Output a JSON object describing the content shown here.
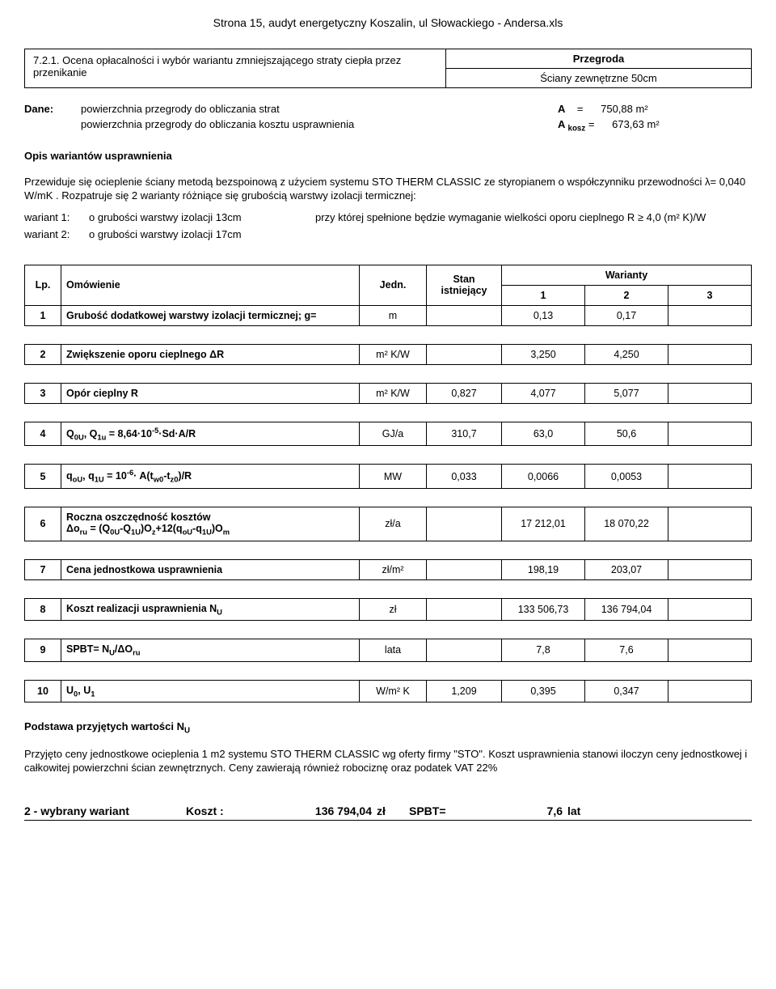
{
  "header": "Strona 15, audyt energetyczny Koszalin, ul Słowackiego - Andersa.xls",
  "section": {
    "number_title": "7.2.1. Ocena opłacalności i wybór wariantu zmniejszającego straty ciepła przez przenikanie",
    "right_top": "Przegroda",
    "right_bottom": "Ściany zewnętrzne 50cm"
  },
  "dane": {
    "label": "Dane:",
    "row1_desc": "powierzchnia przegrody do obliczania strat",
    "row1_sym": "A",
    "row1_eq": "=",
    "row1_val": "750,88",
    "row1_unit": "m²",
    "row2_desc": "powierzchnia przegrody do obliczania kosztu usprawnienia",
    "row2_sym": "A",
    "row2_sub": "kosz",
    "row2_eq": "=",
    "row2_val": "673,63",
    "row2_unit": "m²"
  },
  "opis": {
    "title": "Opis wariantów usprawnienia",
    "para": "Przewiduje się ocieplenie ściany metodą bezspoinową z użyciem systemu STO THERM CLASSIC ze styropianem o współczynniku przewodności λ=            0,040 W/mK . Rozpatruje się 2 warianty różniące się grubością warstwy izolacji termicznej:",
    "w1_lbl": "wariant 1:",
    "w1_desc": "o grubości warstwy izolacji 13cm",
    "w1_note": "przy której spełnione będzie wymaganie wielkości oporu cieplnego R ≥ 4,0 (m² K)/W",
    "w2_lbl": "wariant 2:",
    "w2_desc": "o grubości warstwy izolacji 17cm"
  },
  "table": {
    "head": {
      "lp": "Lp.",
      "om": "Omówienie",
      "jedn": "Jedn.",
      "stan": "Stan istniejący",
      "war": "Warianty",
      "w1": "1",
      "w2": "2",
      "w3": "3"
    },
    "rows": [
      {
        "lp": "1",
        "om": "Grubość dodatkowej warstwy izolacji termicznej;      g=",
        "jedn": "m",
        "stan": "",
        "v1": "0,13",
        "v2": "0,17",
        "v3": ""
      },
      {
        "lp": "2",
        "om": "Zwiększenie oporu cieplnego ΔR",
        "jedn": "m² K/W",
        "stan": "",
        "v1": "3,250",
        "v2": "4,250",
        "v3": ""
      },
      {
        "lp": "3",
        "om": "Opór cieplny R",
        "jedn": "m² K/W",
        "stan": "0,827",
        "v1": "4,077",
        "v2": "5,077",
        "v3": ""
      },
      {
        "lp": "4",
        "om_html": "Q<sub>0U</sub>, Q<sub>1u</sub> = 8,64·10<sup>-5</sup>·Sd·A/R",
        "jedn": "GJ/a",
        "stan": "310,7",
        "v1": "63,0",
        "v2": "50,6",
        "v3": ""
      },
      {
        "lp": "5",
        "om_html": "q<sub>oU</sub>, q<sub>1U</sub> = 10<sup>-6</sup>· A(t<sub>w0</sub>-t<sub>z0</sub>)/R",
        "jedn": "MW",
        "stan": "0,033",
        "v1": "0,0066",
        "v2": "0,0053",
        "v3": ""
      },
      {
        "lp": "6",
        "om_html": "<b>Roczna oszczędność kosztów</b><br>Δo<sub>ru</sub> = (Q<sub>0U</sub>-Q<sub>1U</sub>)O<sub>z</sub>+12(q<sub>oU</sub>-q<sub>1U</sub>)O<sub>m</sub>",
        "jedn": "zł/a",
        "stan": "",
        "v1": "17 212,01",
        "v2": "18 070,22",
        "v3": ""
      },
      {
        "lp": "7",
        "om": "Cena jednostkowa usprawnienia",
        "jedn": "zł/m²",
        "stan": "",
        "v1": "198,19",
        "v2": "203,07",
        "v3": ""
      },
      {
        "lp": "8",
        "om_html": "Koszt realizacji usprawnienia  N<sub>U</sub>",
        "jedn": "zł",
        "stan": "",
        "v1": "133 506,73",
        "v2": "136 794,04",
        "v3": ""
      },
      {
        "lp": "9",
        "om_html": "SPBT= N<sub>U</sub>/ΔO<sub>ru</sub>",
        "jedn": "lata",
        "stan": "",
        "v1": "7,8",
        "v2": "7,6",
        "v3": ""
      },
      {
        "lp": "10",
        "om_html": "U<sub>0</sub>, U<sub>1</sub>",
        "jedn": "W/m² K",
        "stan": "1,209",
        "v1": "0,395",
        "v2": "0,347",
        "v3": ""
      }
    ]
  },
  "footer": {
    "title_html": "Podstawa przyjętych wartości N<sub>U</sub>",
    "para": "Przyjęto ceny jednostkowe ocieplenia 1 m2 systemu STO THERM CLASSIC wg oferty firmy \"STO\". Koszt usprawnienia stanowi iloczyn ceny jednostkowej i całkowitej powierzchni ścian zewnętrznych. Ceny zawierają również robociznę oraz podatek VAT 22%"
  },
  "result": {
    "seg1": "2   - wybrany wariant",
    "seg2": "Koszt :",
    "seg3": "136 794,04",
    "seg4": "zł",
    "seg5": "SPBT=",
    "seg6": "7,6",
    "seg7": "lat"
  }
}
